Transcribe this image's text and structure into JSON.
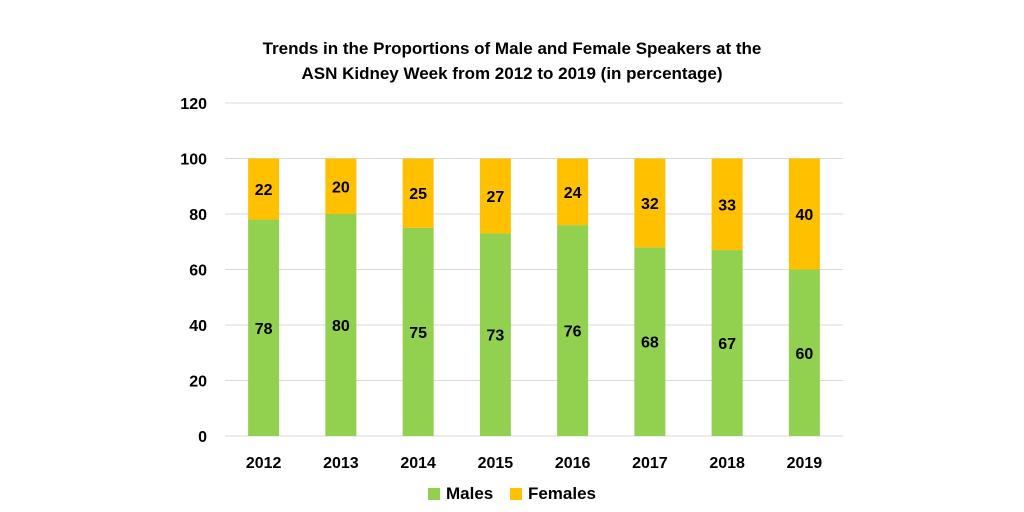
{
  "chart_data": {
    "type": "bar",
    "stacked": true,
    "title_lines": [
      "Trends in the Proportions of Male and Female Speakers at the",
      "ASN Kidney Week from 2012 to 2019 (in percentage)"
    ],
    "xlabel": "",
    "ylabel": "",
    "categories": [
      "2012",
      "2013",
      "2014",
      "2015",
      "2016",
      "2017",
      "2018",
      "2019"
    ],
    "series": [
      {
        "name": "Males",
        "color": "#92d050",
        "values": [
          78,
          80,
          75,
          73,
          76,
          68,
          67,
          60
        ]
      },
      {
        "name": "Females",
        "color": "#ffc000",
        "values": [
          22,
          20,
          25,
          27,
          24,
          32,
          33,
          40
        ]
      }
    ],
    "ylim": [
      0,
      120
    ],
    "yticks": [
      0,
      20,
      40,
      60,
      80,
      100,
      120
    ],
    "grid": true,
    "legend_position": "bottom"
  }
}
